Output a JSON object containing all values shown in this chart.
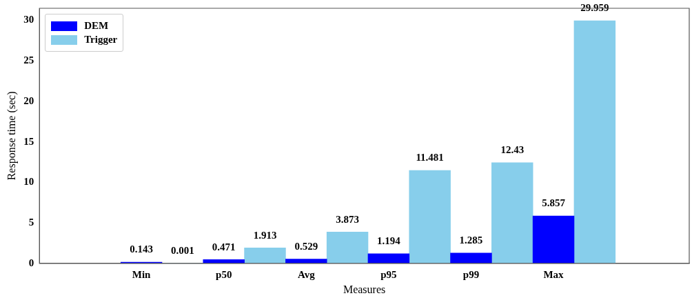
{
  "chart_data": {
    "type": "bar",
    "xlabel": "Measures",
    "ylabel": "Response time (sec)",
    "categories": [
      "Min",
      "p50",
      "Avg",
      "p95",
      "p99",
      "Max"
    ],
    "series": [
      {
        "name": "DEM",
        "color": "#0000ff",
        "values": [
          0.143,
          0.471,
          0.529,
          1.194,
          1.285,
          5.857
        ]
      },
      {
        "name": "Trigger",
        "color": "#87ceeb",
        "values": [
          0.001,
          1.913,
          3.873,
          11.481,
          12.43,
          29.959
        ]
      }
    ],
    "ylim": [
      0,
      31.5
    ],
    "yticks": [
      0,
      5,
      10,
      15,
      20,
      25,
      30
    ],
    "data_labels": true,
    "legend": "top left",
    "grid": false
  }
}
